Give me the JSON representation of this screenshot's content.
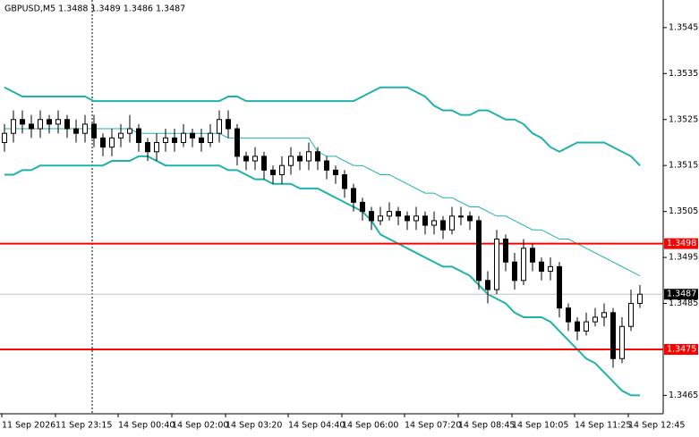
{
  "chart_data": {
    "type": "candlestick",
    "title": "GBPUSD,M5  1.3488 1.3489 1.3486 1.3487",
    "categories": [
      "11 Sep 2026",
      null,
      null,
      null,
      null,
      null,
      "11 Sep 23:15",
      null,
      null,
      null,
      null,
      null,
      null,
      "14 Sep 00:40",
      null,
      null,
      null,
      null,
      null,
      "14 Sep 02:00",
      null,
      null,
      null,
      null,
      null,
      "14 Sep 03:20",
      null,
      null,
      null,
      null,
      null,
      null,
      "14 Sep 04:40",
      null,
      null,
      null,
      null,
      null,
      "14 Sep 06:00",
      null,
      null,
      null,
      null,
      null,
      null,
      "14 Sep 07:20",
      null,
      null,
      null,
      null,
      null,
      "14 Sep 08:45",
      null,
      null,
      null,
      null,
      null,
      "14 Sep 10:05",
      null,
      null,
      null,
      null,
      null,
      null,
      "14 Sep 11:25",
      null,
      null,
      null,
      null,
      null,
      "14 Sep 12:45",
      null
    ],
    "open": [
      1.352,
      1.3522,
      1.3525,
      1.3524,
      1.3523,
      1.3525,
      1.3524,
      1.3525,
      1.3523,
      1.3522,
      1.3524,
      1.3521,
      1.3519,
      1.3521,
      1.3522,
      1.3523,
      1.352,
      1.3518,
      1.352,
      1.3521,
      1.352,
      1.3522,
      1.3521,
      1.352,
      1.3522,
      1.3525,
      1.3523,
      1.3517,
      1.3516,
      1.3517,
      1.3514,
      1.3513,
      1.3515,
      1.3517,
      1.3516,
      1.3518,
      1.3516,
      1.3514,
      1.3513,
      1.351,
      1.3507,
      1.3505,
      1.3503,
      1.3504,
      1.3505,
      1.3504,
      1.3503,
      1.3504,
      1.3502,
      1.3503,
      1.3501,
      1.3504,
      1.3504,
      1.3503,
      1.349,
      1.3488,
      1.3499,
      1.3494,
      1.349,
      1.3497,
      1.3494,
      1.3492,
      1.3493,
      1.3484,
      1.3481,
      1.3479,
      1.3481,
      1.3482,
      1.3483,
      1.3473,
      1.348,
      1.3485
    ],
    "high": [
      1.3524,
      1.3527,
      1.3527,
      1.3526,
      1.3527,
      1.3526,
      1.3527,
      1.3526,
      1.3525,
      1.3526,
      1.3526,
      1.3522,
      1.3523,
      1.3524,
      1.3526,
      1.3524,
      1.3521,
      1.3522,
      1.3523,
      1.3523,
      1.3524,
      1.3523,
      1.3523,
      1.3524,
      1.3527,
      1.3527,
      1.3524,
      1.3518,
      1.3519,
      1.3518,
      1.3515,
      1.3517,
      1.3519,
      1.3518,
      1.352,
      1.3519,
      1.3517,
      1.3515,
      1.3514,
      1.3511,
      1.3508,
      1.3506,
      1.3506,
      1.3507,
      1.3506,
      1.3505,
      1.3506,
      1.3505,
      1.3505,
      1.3504,
      1.3506,
      1.3506,
      1.3505,
      1.3504,
      1.3492,
      1.3501,
      1.35,
      1.3496,
      1.3499,
      1.3498,
      1.3495,
      1.3495,
      1.3494,
      1.3485,
      1.3482,
      1.3483,
      1.3484,
      1.3485,
      1.3484,
      1.3482,
      1.3488,
      1.3489
    ],
    "low": [
      1.3518,
      1.352,
      1.3522,
      1.3521,
      1.3521,
      1.3522,
      1.3522,
      1.3521,
      1.352,
      1.352,
      1.3519,
      1.3517,
      1.3517,
      1.3519,
      1.352,
      1.3518,
      1.3516,
      1.3516,
      1.3518,
      1.3518,
      1.3519,
      1.3519,
      1.3518,
      1.3519,
      1.352,
      1.3521,
      1.3515,
      1.3514,
      1.3514,
      1.3512,
      1.3511,
      1.3511,
      1.3513,
      1.3514,
      1.3514,
      1.3514,
      1.3512,
      1.3511,
      1.3508,
      1.3505,
      1.3503,
      1.3501,
      1.3502,
      1.3503,
      1.3502,
      1.3501,
      1.3501,
      1.35,
      1.35,
      1.3499,
      1.35,
      1.3502,
      1.3501,
      1.3488,
      1.3485,
      1.3487,
      1.3492,
      1.3488,
      1.3489,
      1.3492,
      1.349,
      1.349,
      1.3482,
      1.3479,
      1.3477,
      1.3478,
      1.348,
      1.348,
      1.3471,
      1.3472,
      1.3479,
      1.3484
    ],
    "close": [
      1.3522,
      1.3525,
      1.3524,
      1.3523,
      1.3525,
      1.3524,
      1.3525,
      1.3523,
      1.3522,
      1.3524,
      1.3521,
      1.3519,
      1.3521,
      1.3522,
      1.3523,
      1.352,
      1.3518,
      1.352,
      1.3521,
      1.352,
      1.3522,
      1.3521,
      1.352,
      1.3522,
      1.3525,
      1.3523,
      1.3517,
      1.3516,
      1.3517,
      1.3514,
      1.3513,
      1.3515,
      1.3517,
      1.3516,
      1.3518,
      1.3516,
      1.3514,
      1.3513,
      1.351,
      1.3507,
      1.3505,
      1.3503,
      1.3504,
      1.3505,
      1.3504,
      1.3503,
      1.3504,
      1.3502,
      1.3503,
      1.3501,
      1.3504,
      1.3504,
      1.3503,
      1.349,
      1.3488,
      1.3499,
      1.3494,
      1.349,
      1.3497,
      1.3494,
      1.3492,
      1.3493,
      1.3484,
      1.3481,
      1.3479,
      1.3481,
      1.3482,
      1.3483,
      1.3473,
      1.348,
      1.3485,
      1.3487
    ],
    "color": "#000000",
    "up_fill": "#ffffff",
    "series": [
      {
        "color": "#20b2aa",
        "values": [
          1.3532,
          1.3531,
          1.353,
          1.353,
          1.353,
          1.353,
          1.353,
          1.353,
          1.353,
          1.353,
          1.3529,
          1.3529,
          1.3529,
          1.3529,
          1.3529,
          1.3529,
          1.3529,
          1.3529,
          1.3529,
          1.3529,
          1.3529,
          1.3529,
          1.3529,
          1.3529,
          1.3529,
          1.353,
          1.353,
          1.3529,
          1.3529,
          1.3529,
          1.3529,
          1.3529,
          1.3529,
          1.3529,
          1.3529,
          1.3529,
          1.3529,
          1.3529,
          1.3529,
          1.3529,
          1.353,
          1.3531,
          1.3532,
          1.3532,
          1.3532,
          1.3532,
          1.3531,
          1.353,
          1.3528,
          1.3527,
          1.3527,
          1.3526,
          1.3526,
          1.3527,
          1.3527,
          1.3526,
          1.3525,
          1.3525,
          1.3524,
          1.3522,
          1.3521,
          1.3519,
          1.3518,
          1.3519,
          1.352,
          1.352,
          1.352,
          1.352,
          1.3519,
          1.3518,
          1.3517,
          1.3515
        ]
      },
      {
        "color": "#20b2aa",
        "values": [
          1.3523,
          1.3523,
          1.3523,
          1.3523,
          1.3523,
          1.3523,
          1.3523,
          1.3523,
          1.3523,
          1.3523,
          1.3523,
          1.3523,
          1.3523,
          1.3523,
          1.3523,
          1.3522,
          1.3522,
          1.3522,
          1.3522,
          1.3522,
          1.3522,
          1.3522,
          1.3522,
          1.3522,
          1.3522,
          1.3521,
          1.3521,
          1.3521,
          1.3521,
          1.3521,
          1.3521,
          1.3521,
          1.3521,
          1.3521,
          1.3521,
          1.3518,
          1.3517,
          1.3517,
          1.3516,
          1.3515,
          1.3515,
          1.3514,
          1.3513,
          1.3513,
          1.3512,
          1.3511,
          1.351,
          1.3509,
          1.3509,
          1.3508,
          1.3508,
          1.3507,
          1.3506,
          1.3506,
          1.3505,
          1.3504,
          1.3504,
          1.3503,
          1.3502,
          1.3501,
          1.3501,
          1.35,
          1.3499,
          1.3499,
          1.3498,
          1.3497,
          1.3496,
          1.3495,
          1.3494,
          1.3493,
          1.3492,
          1.3491
        ]
      },
      {
        "color": "#20b2aa",
        "values": [
          1.3513,
          1.3513,
          1.3514,
          1.3514,
          1.3515,
          1.3515,
          1.3515,
          1.3515,
          1.3515,
          1.3515,
          1.3515,
          1.3515,
          1.3516,
          1.3516,
          1.3516,
          1.3517,
          1.3517,
          1.3516,
          1.3515,
          1.3515,
          1.3515,
          1.3515,
          1.3515,
          1.3515,
          1.3515,
          1.3514,
          1.3514,
          1.3513,
          1.3512,
          1.3512,
          1.3511,
          1.3511,
          1.3511,
          1.351,
          1.351,
          1.351,
          1.3509,
          1.3508,
          1.3507,
          1.3506,
          1.3505,
          1.3503,
          1.35,
          1.3499,
          1.3498,
          1.3497,
          1.3496,
          1.3495,
          1.3494,
          1.3493,
          1.3493,
          1.3492,
          1.3491,
          1.3489,
          1.3487,
          1.3486,
          1.3485,
          1.3483,
          1.3482,
          1.3482,
          1.3482,
          1.3481,
          1.3479,
          1.3477,
          1.3475,
          1.3473,
          1.3472,
          1.347,
          1.3468,
          1.3466,
          1.3465,
          1.3465
        ]
      }
    ],
    "ylim": [
      1.3461,
      1.3551
    ],
    "yticks": [
      1.3545,
      1.3535,
      1.3525,
      1.3515,
      1.3505,
      1.3495,
      1.3485,
      1.3465
    ],
    "levels": [
      {
        "value": 1.3498,
        "color": "#ff0000"
      },
      {
        "value": 1.3475,
        "color": "#ff0000"
      },
      {
        "value": 1.3487,
        "color": "#c0c0c0",
        "label_color": "#000000"
      }
    ]
  }
}
